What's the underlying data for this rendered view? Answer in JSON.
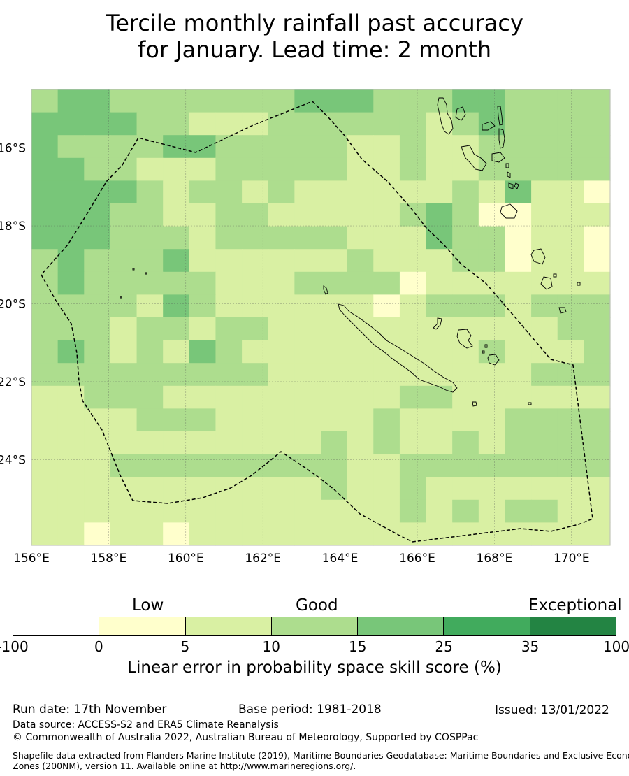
{
  "title": {
    "line1": "Tercile monthly rainfall past accuracy",
    "line2": "for January. Lead time: 2 month"
  },
  "map": {
    "lon_range": [
      156,
      171
    ],
    "lat_range": [
      -26.2,
      -14.5
    ],
    "lon_tick_labels": [
      "156°E",
      "158°E",
      "160°E",
      "162°E",
      "164°E",
      "166°E",
      "168°E",
      "170°E"
    ],
    "lat_tick_labels": [
      "16°S",
      "18°S",
      "20°S",
      "22°S",
      "24°S"
    ],
    "grid_cell_deg": 0.833,
    "grid_rows_north_to_south": [
      "3443333333444333443333",
      "4444332223333332343333",
      "4333344333332232233333",
      "4433222333332232233333",
      "4444323323222222324221",
      "4443322332222234311222",
      "4443332333332224331221",
      "3433342222223222331221",
      "3433333222333312222222",
      "3333243222222123332333",
      "3332332332222222222233",
      "3432324322222222232223",
      "3333333332222222222333",
      "2233322222222233222222",
      "2222333222222322223333",
      "2222222222232322323333",
      "2223333333332233333333",
      "2222222222232232222222",
      "2222222222222232323322",
      "2212212222222222222222"
    ],
    "colors": {
      "ocean_missing": "#ffffff",
      "map_border": "#bcbcbc",
      "eez_line": "#000000",
      "grid_line": "#555555"
    }
  },
  "colorbar": {
    "category_labels": [
      "Low",
      "Good",
      "Exceptional"
    ],
    "colors": [
      "#ffffff",
      "#ffffcc",
      "#d9f0a3",
      "#addd8e",
      "#78c679",
      "#41ab5d",
      "#238443"
    ],
    "tick_labels": [
      "-100",
      "0",
      "5",
      "10",
      "15",
      "25",
      "35",
      "100"
    ],
    "label": "Linear error in probability space skill score (%)"
  },
  "footer": {
    "run_date": "Run date: 17th November",
    "base_period": "Base period: 1981-2018",
    "issued": "Issued: 13/01/2022",
    "data_source": "Data source: ACCESS-S2 and ERA5 Climate Reanalysis",
    "copyright": "© Commonwealth of Australia 2022, Australian Bureau of Meteorology, Supported by COSPPac",
    "shapefile_line1": "Shapefile data extracted from Flanders Marine Institute (2019), Maritime Boundaries Geodatabase: Maritime Boundaries and Exclusive Economic",
    "shapefile_line2": "Zones (200NM), version 11. Available online at http://www.marineregions.org/."
  }
}
